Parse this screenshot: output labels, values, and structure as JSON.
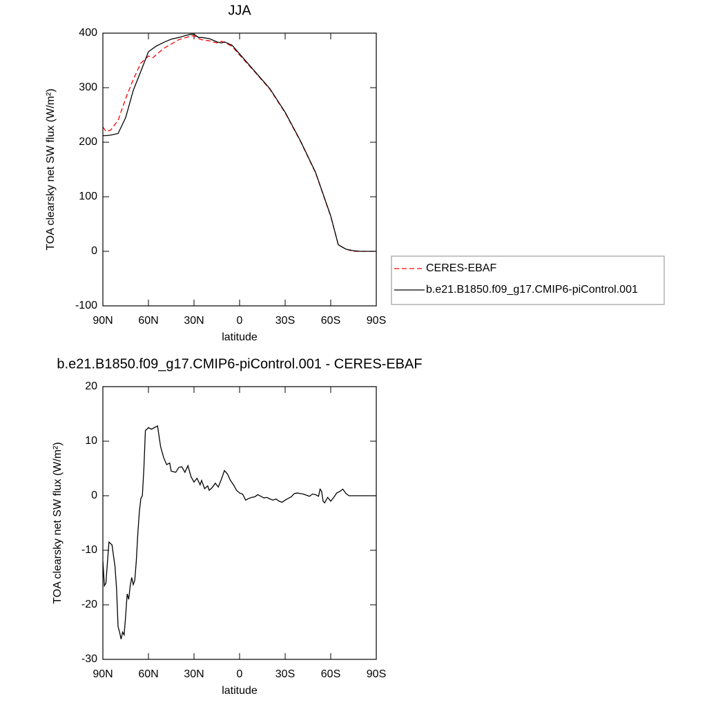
{
  "chart_data": [
    {
      "type": "line",
      "title": "JJA",
      "xlabel": "latitude",
      "ylabel": "TOA clearsky net SW flux (W/m²)",
      "xlim": [
        90,
        -90
      ],
      "ylim": [
        -100,
        400
      ],
      "xticks": [
        {
          "value": 90,
          "label": "90N"
        },
        {
          "value": 60,
          "label": "60N"
        },
        {
          "value": 30,
          "label": "30N"
        },
        0,
        {
          "value": -30,
          "label": "30S"
        },
        {
          "value": -60,
          "label": "60S"
        },
        {
          "value": -90,
          "label": "90S"
        }
      ],
      "yticks": [
        -100,
        0,
        100,
        200,
        300,
        400
      ],
      "legend": "right",
      "x": [
        90,
        88,
        85,
        80,
        75,
        70,
        65,
        60,
        57,
        55,
        50,
        45,
        40,
        35,
        32,
        30,
        27,
        25,
        20,
        15,
        12,
        10,
        5,
        0,
        -10,
        -20,
        -30,
        -40,
        -50,
        -60,
        -65,
        -70,
        -75,
        -80,
        -90
      ],
      "series": [
        {
          "name": "CERES-EBAF",
          "color": "#ff0000",
          "dashed": true,
          "values": [
            228,
            220,
            222,
            240,
            280,
            315,
            345,
            358,
            355,
            360,
            372,
            380,
            388,
            392,
            395,
            395,
            390,
            388,
            386,
            382,
            385,
            383,
            376,
            360,
            329,
            297,
            254,
            202,
            144,
            64,
            12,
            4,
            0,
            0,
            0
          ]
        },
        {
          "name": "b.e21.B1850.f09_g17.CMIP6-piControl.001",
          "color": "#000000",
          "dashed": false,
          "values": [
            212,
            212,
            213,
            216,
            245,
            295,
            330,
            366,
            372,
            376,
            383,
            389,
            392,
            396,
            398,
            398,
            392,
            392,
            390,
            384,
            382,
            384,
            378,
            362,
            330,
            298,
            255,
            203,
            145,
            65,
            12,
            4,
            1,
            0,
            0
          ]
        }
      ]
    },
    {
      "type": "line",
      "title": "b.e21.B1850.f09_g17.CMIP6-piControl.001 - CERES-EBAF",
      "xlabel": "latitude",
      "ylabel": "TOA clearsky net SW flux (W/m²)",
      "xlim": [
        90,
        -90
      ],
      "ylim": [
        -30,
        20
      ],
      "xticks": [
        {
          "value": 90,
          "label": "90N"
        },
        {
          "value": 60,
          "label": "60N"
        },
        {
          "value": 30,
          "label": "30N"
        },
        0,
        {
          "value": -30,
          "label": "30S"
        },
        {
          "value": -60,
          "label": "60S"
        },
        {
          "value": -90,
          "label": "90S"
        }
      ],
      "yticks": [
        -30,
        -20,
        -10,
        0,
        10,
        20
      ],
      "x": [
        90,
        89,
        88,
        86,
        84,
        82,
        81,
        80,
        79,
        78,
        77,
        76,
        75,
        74,
        73,
        72,
        71,
        70,
        69,
        68,
        67,
        66,
        65,
        64,
        63,
        62,
        61,
        60,
        58,
        56,
        54,
        52,
        50,
        48,
        46,
        45,
        42,
        40,
        38,
        36,
        34,
        32,
        30,
        28,
        26,
        25,
        23,
        21,
        20,
        18,
        16,
        14,
        12,
        10,
        8,
        6,
        4,
        2,
        0,
        -2,
        -4,
        -6,
        -8,
        -10,
        -12,
        -14,
        -16,
        -18,
        -20,
        -22,
        -24,
        -26,
        -28,
        -30,
        -32,
        -34,
        -36,
        -38,
        -40,
        -42,
        -44,
        -46,
        -48,
        -50,
        -52,
        -53,
        -54,
        -55,
        -56,
        -58,
        -60,
        -62,
        -64,
        -66,
        -68,
        -70,
        -72,
        -90
      ],
      "series": [
        {
          "color": "#000000",
          "dashed": false,
          "values": [
            -12,
            -16.5,
            -16,
            -8.5,
            -9,
            -13,
            -17,
            -24,
            -25,
            -26.3,
            -25,
            -25.5,
            -22,
            -18,
            -19,
            -16.5,
            -15,
            -16.3,
            -15.5,
            -12,
            -7,
            -3,
            -0.5,
            0,
            5,
            12,
            12.2,
            12.5,
            12.2,
            12.5,
            12.8,
            9,
            7,
            5.7,
            6,
            4.5,
            4.3,
            5.2,
            5.3,
            4.3,
            5.5,
            3.5,
            2.5,
            3.2,
            2,
            2.8,
            1.3,
            1.8,
            1,
            1.5,
            2.3,
            1.6,
            3,
            4.6,
            4,
            2.8,
            2,
            1,
            0.5,
            0.3,
            -0.8,
            -0.5,
            -0.3,
            -0.2,
            0.2,
            -0.1,
            -0.4,
            -0.3,
            -0.6,
            -0.8,
            -0.6,
            -1,
            -1.2,
            -0.8,
            -0.5,
            -0.2,
            0.4,
            0.5,
            0.4,
            0.3,
            0.1,
            -0.1,
            0.3,
            0.2,
            -0.1,
            1.2,
            0.8,
            -1,
            -1.3,
            -0.3,
            -1,
            -0.3,
            0.5,
            0.8,
            1.2,
            0.4,
            0,
            0
          ]
        }
      ]
    }
  ]
}
